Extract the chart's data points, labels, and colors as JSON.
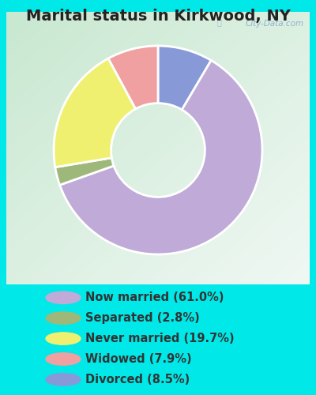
{
  "title": "Marital status in Kirkwood, NY",
  "slices": [
    61.0,
    2.8,
    19.7,
    7.9,
    8.5
  ],
  "labels": [
    "Now married (61.0%)",
    "Separated (2.8%)",
    "Never married (19.7%)",
    "Widowed (7.9%)",
    "Divorced (8.5%)"
  ],
  "colors": [
    "#c0aad8",
    "#9eb87a",
    "#f0f070",
    "#f0a0a0",
    "#8899d8"
  ],
  "background_outer": "#00e8e8",
  "background_inner_tl": "#c8e8d0",
  "background_inner_br": "#f0f8f4",
  "title_fontsize": 14,
  "legend_fontsize": 10.5,
  "watermark": "City-Data.com",
  "plot_order": [
    4,
    0,
    1,
    2,
    3
  ],
  "donut_width": 0.55
}
